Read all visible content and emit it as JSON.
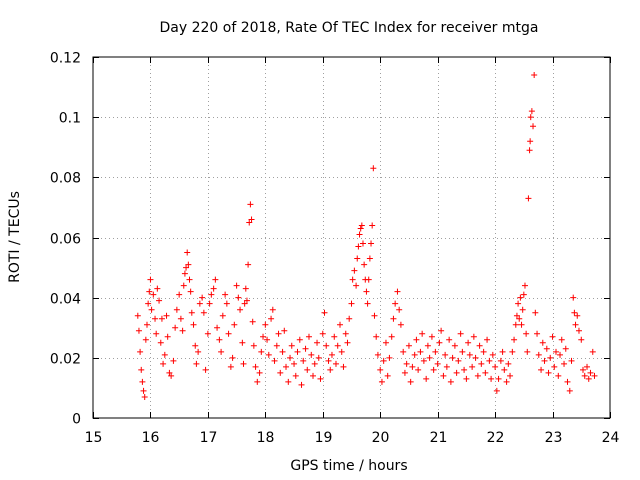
{
  "chart_data": {
    "type": "scatter",
    "title": "Day 220 of 2018, Rate Of TEC Index for receiver mtga",
    "xlabel": "GPS time / hours",
    "ylabel": "ROTI / TECUs",
    "xlim": [
      15,
      24
    ],
    "ylim": [
      0,
      0.12
    ],
    "xticks": [
      15,
      16,
      17,
      18,
      19,
      20,
      21,
      22,
      23,
      24
    ],
    "xtick_labels": [
      "15",
      "16",
      "17",
      "18",
      "19",
      "20",
      "21",
      "22",
      "23",
      "24"
    ],
    "yticks": [
      0,
      0.02,
      0.04,
      0.06,
      0.08,
      0.1,
      0.12
    ],
    "ytick_labels": [
      "0",
      "0.02",
      "0.04",
      "0.06",
      "0.08",
      "0.1",
      "0.12"
    ],
    "grid": true,
    "marker": "plus",
    "color": "#ff0000",
    "series": [
      {
        "name": "ROTI",
        "points": [
          [
            15.78,
            0.034
          ],
          [
            15.8,
            0.029
          ],
          [
            15.82,
            0.022
          ],
          [
            15.84,
            0.016
          ],
          [
            15.86,
            0.012
          ],
          [
            15.88,
            0.009
          ],
          [
            15.9,
            0.007
          ],
          [
            15.92,
            0.026
          ],
          [
            15.94,
            0.031
          ],
          [
            15.96,
            0.038
          ],
          [
            15.98,
            0.042
          ],
          [
            16.0,
            0.046
          ],
          [
            16.02,
            0.036
          ],
          [
            16.05,
            0.041
          ],
          [
            16.08,
            0.033
          ],
          [
            16.1,
            0.028
          ],
          [
            16.12,
            0.043
          ],
          [
            16.15,
            0.039
          ],
          [
            16.18,
            0.025
          ],
          [
            16.2,
            0.033
          ],
          [
            16.22,
            0.018
          ],
          [
            16.25,
            0.021
          ],
          [
            16.28,
            0.034
          ],
          [
            16.3,
            0.027
          ],
          [
            16.33,
            0.015
          ],
          [
            16.36,
            0.014
          ],
          [
            16.4,
            0.019
          ],
          [
            16.43,
            0.03
          ],
          [
            16.46,
            0.036
          ],
          [
            16.5,
            0.041
          ],
          [
            16.53,
            0.033
          ],
          [
            16.56,
            0.029
          ],
          [
            16.58,
            0.044
          ],
          [
            16.6,
            0.048
          ],
          [
            16.62,
            0.05
          ],
          [
            16.64,
            0.055
          ],
          [
            16.66,
            0.051
          ],
          [
            16.68,
            0.046
          ],
          [
            16.7,
            0.042
          ],
          [
            16.72,
            0.035
          ],
          [
            16.75,
            0.031
          ],
          [
            16.78,
            0.024
          ],
          [
            16.8,
            0.018
          ],
          [
            16.83,
            0.022
          ],
          [
            16.86,
            0.038
          ],
          [
            16.9,
            0.04
          ],
          [
            16.93,
            0.035
          ],
          [
            16.96,
            0.016
          ],
          [
            17.0,
            0.028
          ],
          [
            17.03,
            0.038
          ],
          [
            17.06,
            0.041
          ],
          [
            17.1,
            0.043
          ],
          [
            17.13,
            0.046
          ],
          [
            17.16,
            0.03
          ],
          [
            17.2,
            0.026
          ],
          [
            17.23,
            0.022
          ],
          [
            17.26,
            0.034
          ],
          [
            17.3,
            0.041
          ],
          [
            17.33,
            0.038
          ],
          [
            17.36,
            0.028
          ],
          [
            17.4,
            0.017
          ],
          [
            17.43,
            0.02
          ],
          [
            17.46,
            0.031
          ],
          [
            17.5,
            0.044
          ],
          [
            17.53,
            0.04
          ],
          [
            17.56,
            0.036
          ],
          [
            17.6,
            0.025
          ],
          [
            17.62,
            0.018
          ],
          [
            17.64,
            0.038
          ],
          [
            17.66,
            0.043
          ],
          [
            17.68,
            0.039
          ],
          [
            17.7,
            0.051
          ],
          [
            17.72,
            0.065
          ],
          [
            17.74,
            0.071
          ],
          [
            17.76,
            0.066
          ],
          [
            17.78,
            0.032
          ],
          [
            17.8,
            0.024
          ],
          [
            17.83,
            0.017
          ],
          [
            17.86,
            0.012
          ],
          [
            17.9,
            0.015
          ],
          [
            17.93,
            0.022
          ],
          [
            17.96,
            0.027
          ],
          [
            18.0,
            0.031
          ],
          [
            18.03,
            0.026
          ],
          [
            18.06,
            0.021
          ],
          [
            18.1,
            0.033
          ],
          [
            18.13,
            0.036
          ],
          [
            18.16,
            0.019
          ],
          [
            18.2,
            0.024
          ],
          [
            18.23,
            0.028
          ],
          [
            18.26,
            0.015
          ],
          [
            18.3,
            0.022
          ],
          [
            18.33,
            0.029
          ],
          [
            18.36,
            0.017
          ],
          [
            18.4,
            0.012
          ],
          [
            18.43,
            0.02
          ],
          [
            18.46,
            0.024
          ],
          [
            18.5,
            0.018
          ],
          [
            18.53,
            0.014
          ],
          [
            18.56,
            0.022
          ],
          [
            18.6,
            0.026
          ],
          [
            18.63,
            0.011
          ],
          [
            18.66,
            0.019
          ],
          [
            18.7,
            0.023
          ],
          [
            18.73,
            0.016
          ],
          [
            18.76,
            0.027
          ],
          [
            18.8,
            0.021
          ],
          [
            18.83,
            0.014
          ],
          [
            18.86,
            0.018
          ],
          [
            18.9,
            0.025
          ],
          [
            18.93,
            0.02
          ],
          [
            18.96,
            0.013
          ],
          [
            19.0,
            0.028
          ],
          [
            19.03,
            0.035
          ],
          [
            19.06,
            0.024
          ],
          [
            19.1,
            0.019
          ],
          [
            19.13,
            0.016
          ],
          [
            19.16,
            0.021
          ],
          [
            19.2,
            0.027
          ],
          [
            19.23,
            0.018
          ],
          [
            19.26,
            0.024
          ],
          [
            19.3,
            0.031
          ],
          [
            19.33,
            0.022
          ],
          [
            19.36,
            0.017
          ],
          [
            19.4,
            0.028
          ],
          [
            19.43,
            0.025
          ],
          [
            19.46,
            0.033
          ],
          [
            19.5,
            0.038
          ],
          [
            19.52,
            0.046
          ],
          [
            19.55,
            0.049
          ],
          [
            19.58,
            0.044
          ],
          [
            19.6,
            0.053
          ],
          [
            19.62,
            0.057
          ],
          [
            19.64,
            0.061
          ],
          [
            19.66,
            0.063
          ],
          [
            19.68,
            0.064
          ],
          [
            19.7,
            0.058
          ],
          [
            19.72,
            0.051
          ],
          [
            19.74,
            0.046
          ],
          [
            19.76,
            0.042
          ],
          [
            19.78,
            0.038
          ],
          [
            19.8,
            0.046
          ],
          [
            19.82,
            0.053
          ],
          [
            19.84,
            0.058
          ],
          [
            19.86,
            0.064
          ],
          [
            19.88,
            0.083
          ],
          [
            19.9,
            0.034
          ],
          [
            19.93,
            0.027
          ],
          [
            19.96,
            0.021
          ],
          [
            20.0,
            0.016
          ],
          [
            20.03,
            0.012
          ],
          [
            20.06,
            0.019
          ],
          [
            20.1,
            0.025
          ],
          [
            20.13,
            0.014
          ],
          [
            20.16,
            0.02
          ],
          [
            20.2,
            0.027
          ],
          [
            20.23,
            0.033
          ],
          [
            20.26,
            0.038
          ],
          [
            20.3,
            0.042
          ],
          [
            20.33,
            0.036
          ],
          [
            20.36,
            0.031
          ],
          [
            20.4,
            0.022
          ],
          [
            20.43,
            0.015
          ],
          [
            20.46,
            0.018
          ],
          [
            20.5,
            0.024
          ],
          [
            20.53,
            0.012
          ],
          [
            20.56,
            0.017
          ],
          [
            20.6,
            0.021
          ],
          [
            20.63,
            0.026
          ],
          [
            20.66,
            0.016
          ],
          [
            20.7,
            0.022
          ],
          [
            20.73,
            0.028
          ],
          [
            20.76,
            0.019
          ],
          [
            20.8,
            0.013
          ],
          [
            20.83,
            0.024
          ],
          [
            20.86,
            0.02
          ],
          [
            20.9,
            0.027
          ],
          [
            20.93,
            0.016
          ],
          [
            20.96,
            0.022
          ],
          [
            21.0,
            0.018
          ],
          [
            21.03,
            0.025
          ],
          [
            21.06,
            0.029
          ],
          [
            21.1,
            0.014
          ],
          [
            21.13,
            0.021
          ],
          [
            21.16,
            0.017
          ],
          [
            21.2,
            0.026
          ],
          [
            21.23,
            0.012
          ],
          [
            21.26,
            0.02
          ],
          [
            21.3,
            0.024
          ],
          [
            21.33,
            0.015
          ],
          [
            21.36,
            0.019
          ],
          [
            21.4,
            0.028
          ],
          [
            21.43,
            0.022
          ],
          [
            21.46,
            0.016
          ],
          [
            21.5,
            0.013
          ],
          [
            21.53,
            0.025
          ],
          [
            21.56,
            0.021
          ],
          [
            21.6,
            0.017
          ],
          [
            21.63,
            0.027
          ],
          [
            21.66,
            0.02
          ],
          [
            21.7,
            0.014
          ],
          [
            21.73,
            0.024
          ],
          [
            21.76,
            0.018
          ],
          [
            21.8,
            0.022
          ],
          [
            21.83,
            0.015
          ],
          [
            21.86,
            0.026
          ],
          [
            21.9,
            0.019
          ],
          [
            21.93,
            0.013
          ],
          [
            21.96,
            0.021
          ],
          [
            22.0,
            0.017
          ],
          [
            22.03,
            0.009
          ],
          [
            22.06,
            0.013
          ],
          [
            22.1,
            0.019
          ],
          [
            22.13,
            0.022
          ],
          [
            22.16,
            0.016
          ],
          [
            22.2,
            0.012
          ],
          [
            22.23,
            0.018
          ],
          [
            22.26,
            0.014
          ],
          [
            22.3,
            0.022
          ],
          [
            22.33,
            0.026
          ],
          [
            22.36,
            0.031
          ],
          [
            22.38,
            0.034
          ],
          [
            22.4,
            0.038
          ],
          [
            22.42,
            0.033
          ],
          [
            22.44,
            0.04
          ],
          [
            22.46,
            0.031
          ],
          [
            22.48,
            0.036
          ],
          [
            22.5,
            0.041
          ],
          [
            22.52,
            0.044
          ],
          [
            22.54,
            0.028
          ],
          [
            22.56,
            0.022
          ],
          [
            22.58,
            0.073
          ],
          [
            22.6,
            0.089
          ],
          [
            22.61,
            0.092
          ],
          [
            22.62,
            0.1
          ],
          [
            22.64,
            0.102
          ],
          [
            22.66,
            0.097
          ],
          [
            22.68,
            0.114
          ],
          [
            22.7,
            0.035
          ],
          [
            22.73,
            0.028
          ],
          [
            22.76,
            0.021
          ],
          [
            22.8,
            0.016
          ],
          [
            22.83,
            0.025
          ],
          [
            22.86,
            0.019
          ],
          [
            22.9,
            0.023
          ],
          [
            22.93,
            0.015
          ],
          [
            22.96,
            0.02
          ],
          [
            23.0,
            0.027
          ],
          [
            23.03,
            0.017
          ],
          [
            23.06,
            0.022
          ],
          [
            23.1,
            0.014
          ],
          [
            23.13,
            0.021
          ],
          [
            23.16,
            0.026
          ],
          [
            23.2,
            0.018
          ],
          [
            23.23,
            0.023
          ],
          [
            23.26,
            0.012
          ],
          [
            23.3,
            0.009
          ],
          [
            23.33,
            0.019
          ],
          [
            23.36,
            0.04
          ],
          [
            23.38,
            0.035
          ],
          [
            23.4,
            0.031
          ],
          [
            23.43,
            0.034
          ],
          [
            23.46,
            0.029
          ],
          [
            23.5,
            0.026
          ],
          [
            23.53,
            0.016
          ],
          [
            23.56,
            0.014
          ],
          [
            23.6,
            0.017
          ],
          [
            23.63,
            0.013
          ],
          [
            23.66,
            0.015
          ],
          [
            23.7,
            0.022
          ],
          [
            23.73,
            0.014
          ]
        ]
      }
    ]
  }
}
